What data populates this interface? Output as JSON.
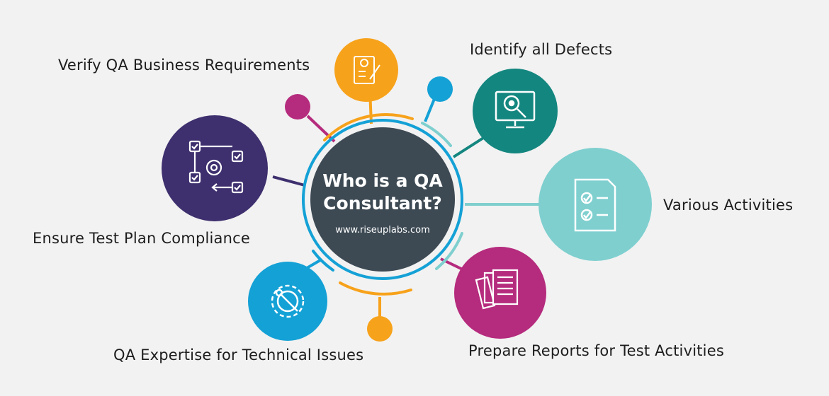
{
  "center": {
    "title_line1": "Who is a QA",
    "title_line2": "Consultant?",
    "url": "www.riseuplabs.com"
  },
  "nodes": [
    {
      "label": "Verify QA Business Requirements",
      "icon": "checklist-document-icon",
      "color": "#f7a21b"
    },
    {
      "label": "Identify all Defects",
      "icon": "bug-magnifier-monitor-icon",
      "color": "#13867f"
    },
    {
      "label": "Various Activities",
      "icon": "checklist-clipboard-icon",
      "color": "#7fcfcf"
    },
    {
      "label": "Ensure Test Plan Compliance",
      "icon": "workflow-gear-icon",
      "color": "#3e2f6e"
    },
    {
      "label": "QA Expertise for Technical Issues",
      "icon": "gear-wrench-icon",
      "color": "#14a1d6"
    },
    {
      "label": "Prepare Reports for Test Activities",
      "icon": "reports-documents-icon",
      "color": "#b52b7d"
    }
  ],
  "colors": {
    "background": "#f2f2f2",
    "center": "#3d4a54",
    "accent_pink": "#b52b7d",
    "accent_blue": "#14a1d6",
    "accent_orange": "#f7a21b",
    "accent_teal": "#7fcfcf"
  }
}
